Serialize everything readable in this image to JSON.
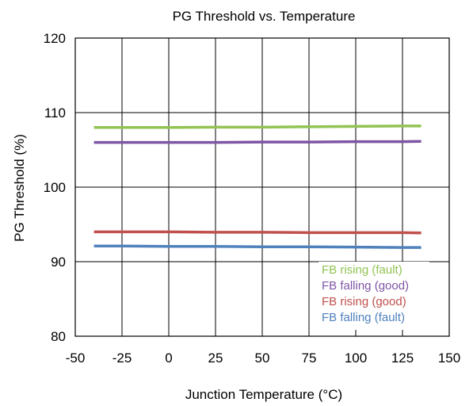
{
  "chart_data": {
    "type": "line",
    "title": "PG Threshold vs. Temperature",
    "xlabel": "Junction Temperature (°C)",
    "ylabel": "PG Threshold  (%)",
    "xlim": [
      -50,
      150
    ],
    "ylim": [
      80,
      120
    ],
    "xticks": [
      -50,
      -25,
      0,
      25,
      50,
      75,
      100,
      125,
      150
    ],
    "yticks": [
      80,
      90,
      100,
      110,
      120
    ],
    "grid": true,
    "legend_position": "bottom-right",
    "x": [
      -40,
      -25,
      0,
      25,
      50,
      75,
      100,
      125,
      135
    ],
    "series": [
      {
        "name": "FB rising (fault)",
        "color": "#92c353",
        "values": [
          108.0,
          108.0,
          108.0,
          108.05,
          108.05,
          108.1,
          108.15,
          108.2,
          108.2
        ]
      },
      {
        "name": "FB falling (good)",
        "color": "#7f55a5",
        "values": [
          106.0,
          106.0,
          106.0,
          106.0,
          106.05,
          106.05,
          106.1,
          106.1,
          106.15
        ]
      },
      {
        "name": "FB rising (good)",
        "color": "#c0504d",
        "values": [
          94.0,
          94.0,
          94.0,
          93.95,
          93.95,
          93.9,
          93.9,
          93.9,
          93.85
        ]
      },
      {
        "name": "FB falling (fault)",
        "color": "#4f81bd",
        "values": [
          92.1,
          92.1,
          92.05,
          92.05,
          92.0,
          92.0,
          91.95,
          91.9,
          91.9
        ]
      }
    ]
  }
}
